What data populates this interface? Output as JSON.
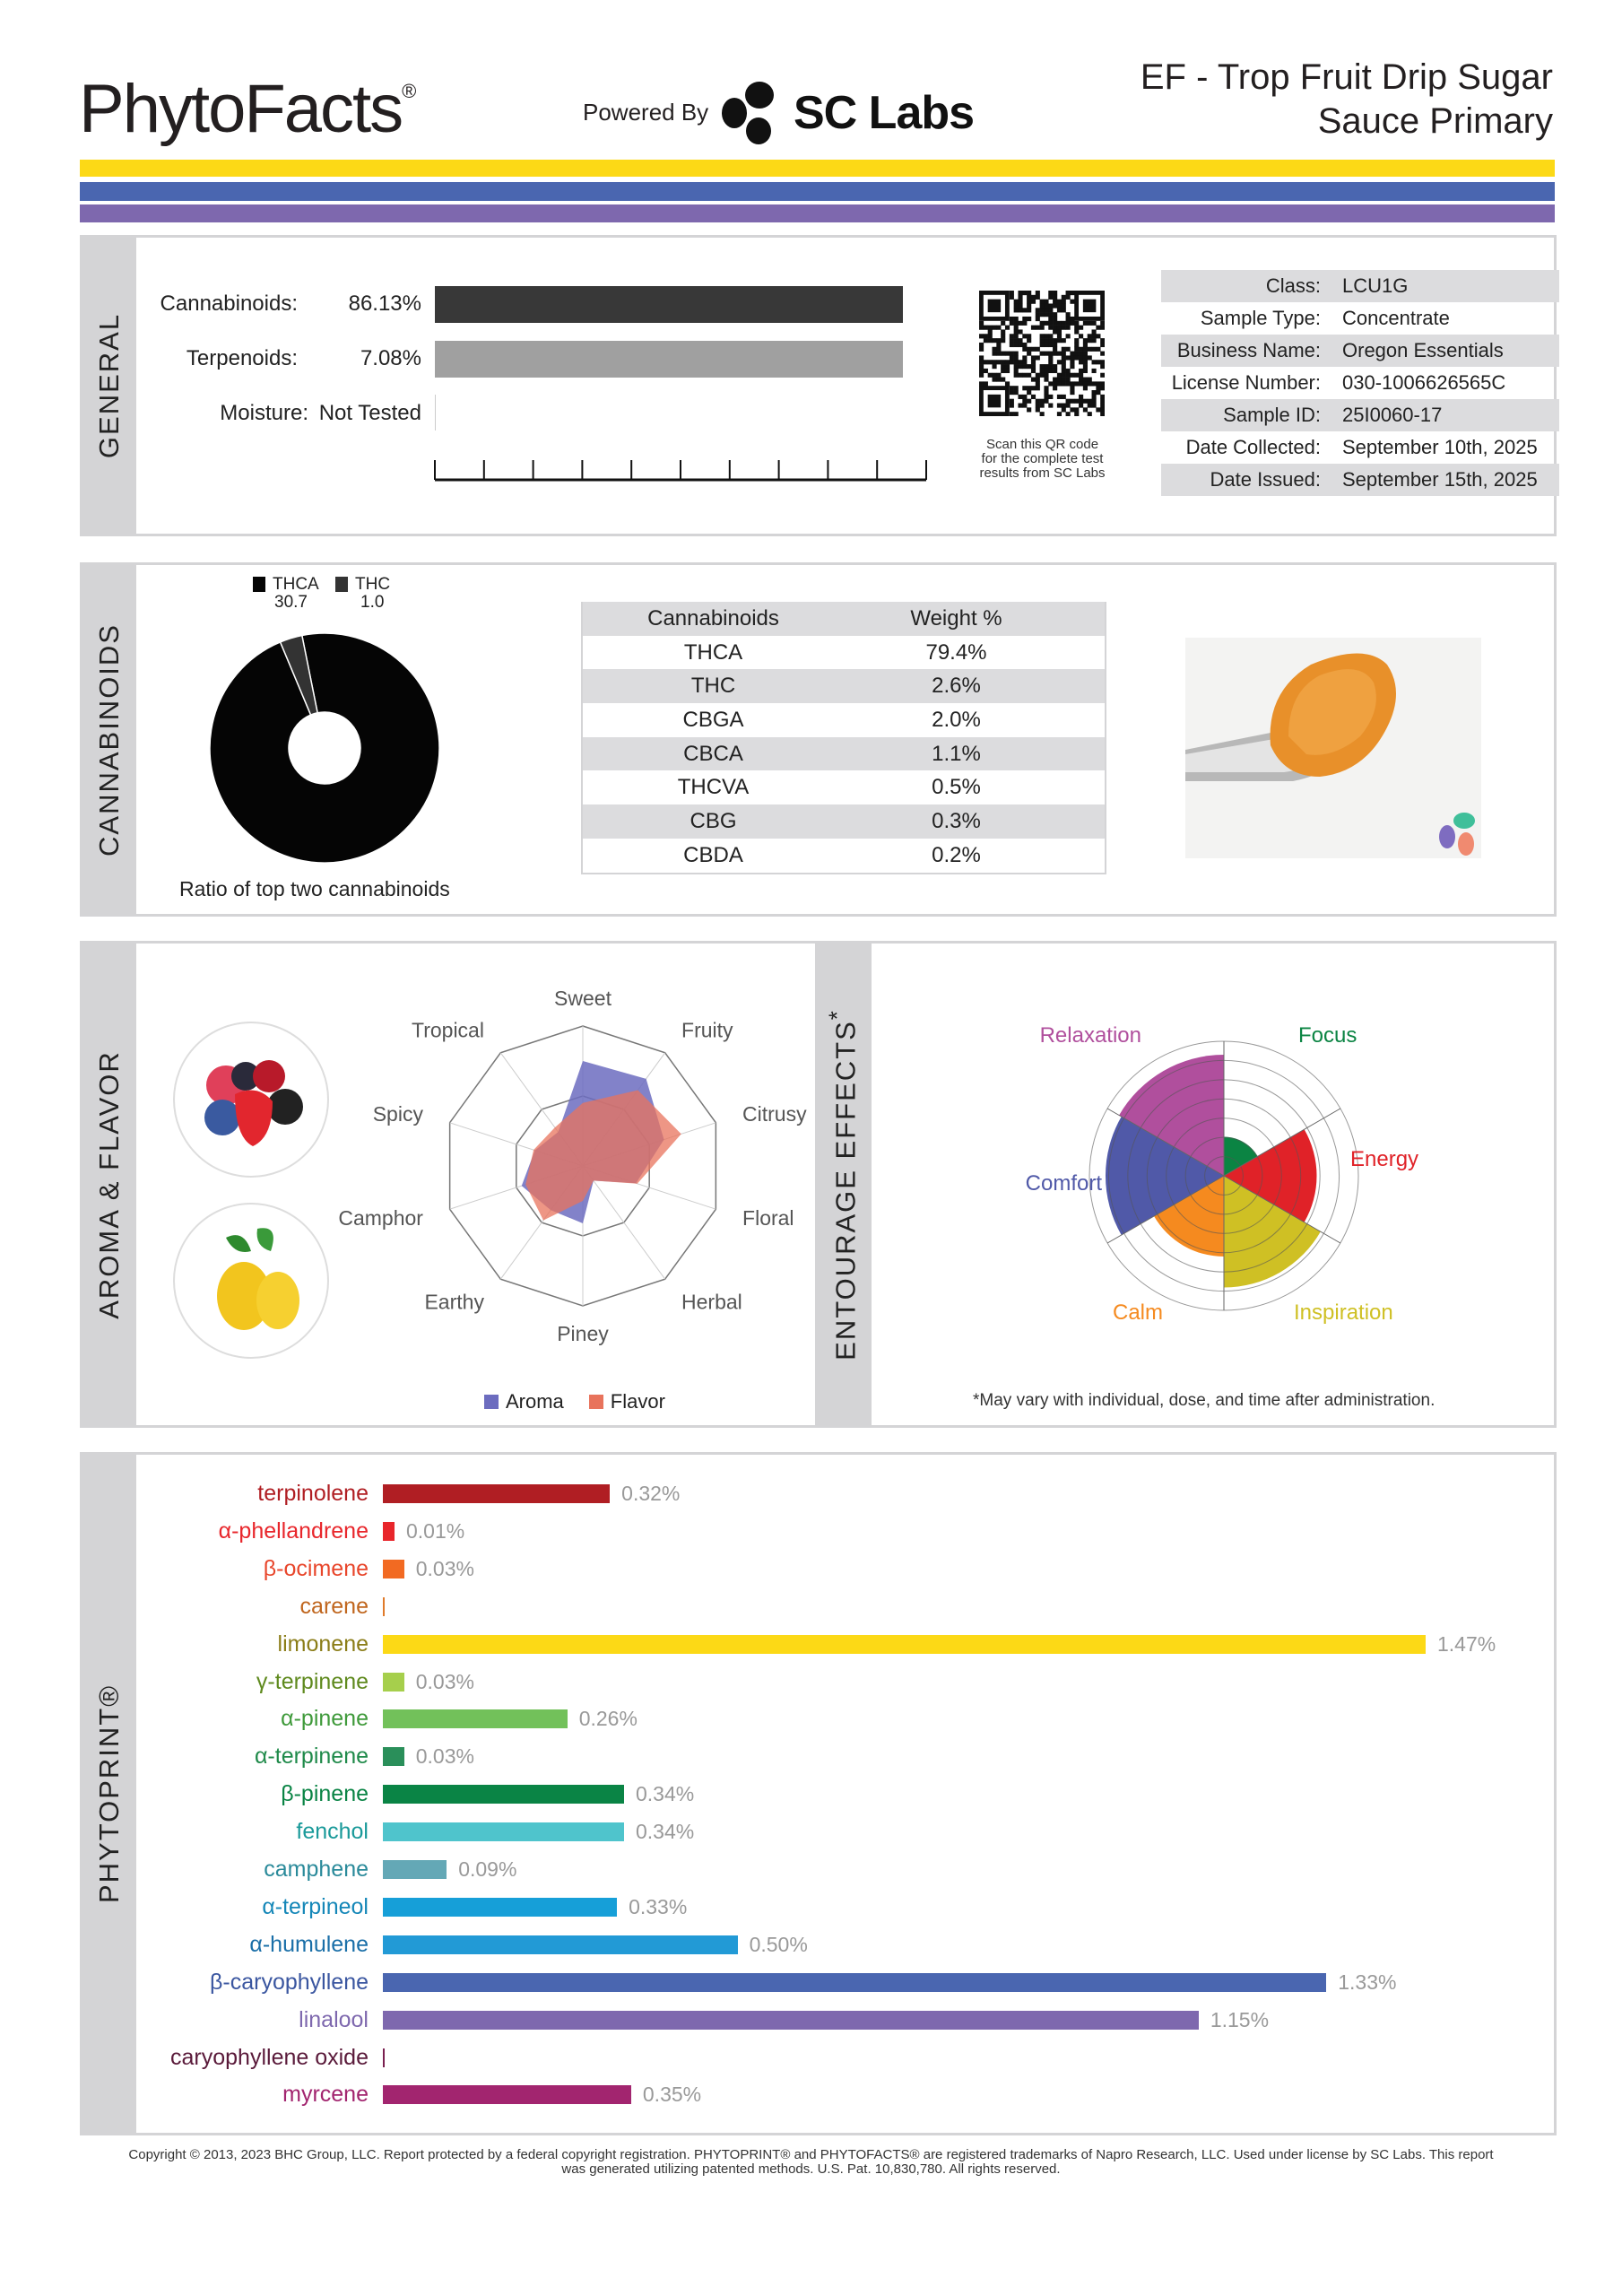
{
  "header": {
    "brand": "PhytoFacts",
    "brand_mark": "®",
    "powered_by": "Powered By",
    "partner_logo": "SC Labs",
    "title_line1": "EF - Trop Fruit Drip Sugar",
    "title_line2": "Sauce Primary"
  },
  "stripes": {
    "yellow": "#fcd916",
    "blue": "#4a66b0",
    "purple": "#7e68ae"
  },
  "general": {
    "section_label": "GENERAL",
    "cannabinoids_label": "Cannabinoids:",
    "cannabinoids_value": "86.13%",
    "cannabinoids_fraction": 1.0,
    "terpenoids_label": "Terpenoids:",
    "terpenoids_value": "7.08%",
    "terpenoids_fraction": 1.0,
    "moisture_label": "Moisture:",
    "moisture_value": "Not Tested",
    "qr_caption": [
      "Scan this QR code",
      "for the complete test",
      "results from SC Labs"
    ],
    "info": [
      {
        "key": "Class:",
        "value": "LCU1G"
      },
      {
        "key": "Sample Type:",
        "value": "Concentrate"
      },
      {
        "key": "Business Name:",
        "value": "Oregon Essentials"
      },
      {
        "key": "License Number:",
        "value": "030-1006626565C"
      },
      {
        "key": "Sample ID:",
        "value": "25I0060-17"
      },
      {
        "key": "Date Collected:",
        "value": "September 10th, 2025"
      },
      {
        "key": "Date Issued:",
        "value": "September 15th, 2025"
      }
    ]
  },
  "cannabinoids": {
    "section_label": "CANNABINOIDS",
    "donut": {
      "legend": [
        {
          "name": "THCA",
          "value": "30.7",
          "color": "#050505"
        },
        {
          "name": "THC",
          "value": "1.0",
          "color": "#333333"
        }
      ],
      "caption": "Ratio of top two cannabinoids"
    },
    "table": {
      "headers": [
        "Cannabinoids",
        "Weight %"
      ],
      "rows": [
        [
          "THCA",
          "79.4%"
        ],
        [
          "THC",
          "2.6%"
        ],
        [
          "CBGA",
          "2.0%"
        ],
        [
          "CBCA",
          "1.1%"
        ],
        [
          "THCVA",
          "0.5%"
        ],
        [
          "CBG",
          "0.3%"
        ],
        [
          "CBDA",
          "0.2%"
        ]
      ]
    }
  },
  "aroma": {
    "section_label": "AROMA & FLAVOR",
    "images": [
      "mixed-berries",
      "lemons"
    ],
    "legend": [
      {
        "name": "Aroma",
        "color": "#6c6cbf"
      },
      {
        "name": "Flavor",
        "color": "#e8735c"
      }
    ]
  },
  "entourage": {
    "section_label": "ENTOURAGE EFFECTS",
    "section_mark": "*",
    "footnote": "*May vary with individual, dose, and time after administration."
  },
  "phytoprint": {
    "section_label": "PHYTOPRINT®",
    "terpenes": [
      {
        "name": "terpinolene",
        "value": 0.32,
        "label": "0.32%",
        "color": "#b01e23",
        "text_color": "#b01e23"
      },
      {
        "name": "α-phellandrene",
        "value": 0.01,
        "label": "0.01%",
        "color": "#e8262b",
        "text_color": "#e8262b"
      },
      {
        "name": "β-ocimene",
        "value": 0.03,
        "label": "0.03%",
        "color": "#f26a22",
        "text_color": "#e8462b"
      },
      {
        "name": "carene",
        "value": 0,
        "label": "",
        "color": "#e07a2a",
        "text_color": "#c0661e"
      },
      {
        "name": "limonene",
        "value": 1.47,
        "label": "1.47%",
        "color": "#fcd916",
        "text_color": "#8b7d18"
      },
      {
        "name": "γ-terpinene",
        "value": 0.03,
        "label": "0.03%",
        "color": "#a6cf4c",
        "text_color": "#5f8a1e"
      },
      {
        "name": "α-pinene",
        "value": 0.26,
        "label": "0.26%",
        "color": "#72c15a",
        "text_color": "#3f9a3b"
      },
      {
        "name": "α-terpinene",
        "value": 0.03,
        "label": "0.03%",
        "color": "#2a8f5a",
        "text_color": "#1f8a4a"
      },
      {
        "name": "β-pinene",
        "value": 0.34,
        "label": "0.34%",
        "color": "#0a8445",
        "text_color": "#0a8445"
      },
      {
        "name": "fenchol",
        "value": 0.34,
        "label": "0.34%",
        "color": "#4fc4cc",
        "text_color": "#1a9a9a"
      },
      {
        "name": "camphene",
        "value": 0.09,
        "label": "0.09%",
        "color": "#64a8b6",
        "text_color": "#2a8a9a"
      },
      {
        "name": "α-terpineol",
        "value": 0.33,
        "label": "0.33%",
        "color": "#169fd8",
        "text_color": "#1587b8"
      },
      {
        "name": "α-humulene",
        "value": 0.5,
        "label": "0.50%",
        "color": "#229ad6",
        "text_color": "#1a6fa8"
      },
      {
        "name": "β-caryophyllene",
        "value": 1.33,
        "label": "1.33%",
        "color": "#4a66b0",
        "text_color": "#3a56a0"
      },
      {
        "name": "linalool",
        "value": 1.15,
        "label": "1.15%",
        "color": "#7e68ae",
        "text_color": "#7e68ae"
      },
      {
        "name": "caryophyllene oxide",
        "value": 0,
        "label": "",
        "color": "#7a2050",
        "text_color": "#5a1a3a"
      },
      {
        "name": "myrcene",
        "value": 0.35,
        "label": "0.35%",
        "color": "#a2256f",
        "text_color": "#a2256f"
      }
    ]
  },
  "footer": {
    "line1": "Copyright © 2013, 2023 BHC Group, LLC. Report protected by a federal copyright registration. PHYTOPRINT® and PHYTOFACTS® are registered trademarks of Napro Research, LLC. Used under license by SC Labs. This report",
    "line2": "was generated utilizing patented methods. U.S. Pat. 10,830,780. All rights reserved."
  },
  "chart_data": [
    {
      "type": "pie",
      "variant": "donut",
      "categories": [
        "THCA",
        "THC"
      ],
      "values": [
        30.7,
        1.0
      ],
      "colors": [
        "#050505",
        "#333333"
      ],
      "title": "",
      "caption": "Ratio of top two cannabinoids",
      "legend_position": "top"
    },
    {
      "type": "radar",
      "axes": [
        "Sweet",
        "Fruity",
        "Citrusy",
        "Floral",
        "Herbal",
        "Piney",
        "Earthy",
        "Camphor",
        "Spicy",
        "Tropical"
      ],
      "range": [
        0,
        1
      ],
      "grid_rings": 2,
      "series": [
        {
          "name": "Aroma",
          "color": "#6c6cbf",
          "values": [
            0.75,
            0.77,
            0.61,
            0.4,
            0.13,
            0.41,
            0.39,
            0.46,
            0.36,
            0.3
          ]
        },
        {
          "name": "Flavor",
          "color": "#e8735c",
          "values": [
            0.45,
            0.67,
            0.74,
            0.41,
            0.13,
            0.25,
            0.48,
            0.43,
            0.37,
            0.34
          ]
        }
      ],
      "legend_position": "bottom"
    },
    {
      "type": "polar-area",
      "categories": [
        "Focus",
        "Energy",
        "Inspiration",
        "Calm",
        "Comfort",
        "Relaxation"
      ],
      "values": [
        0.29,
        0.69,
        0.83,
        0.6,
        0.88,
        0.9
      ],
      "range": [
        0,
        1
      ],
      "grid_rings": 7,
      "colors": [
        "#0b8443",
        "#e02228",
        "#cfc024",
        "#f58a1f",
        "#5059a8",
        "#b04f9d"
      ]
    },
    {
      "type": "bar",
      "orientation": "horizontal",
      "categories": [
        "terpinolene",
        "α-phellandrene",
        "β-ocimene",
        "carene",
        "limonene",
        "γ-terpinene",
        "α-pinene",
        "α-terpinene",
        "β-pinene",
        "fenchol",
        "camphene",
        "α-terpineol",
        "α-humulene",
        "β-caryophyllene",
        "linalool",
        "caryophyllene oxide",
        "myrcene"
      ],
      "values": [
        0.32,
        0.01,
        0.03,
        0,
        1.47,
        0.03,
        0.26,
        0.03,
        0.34,
        0.34,
        0.09,
        0.33,
        0.5,
        1.33,
        1.15,
        0,
        0.35
      ],
      "unit": "%",
      "grid": false
    }
  ]
}
